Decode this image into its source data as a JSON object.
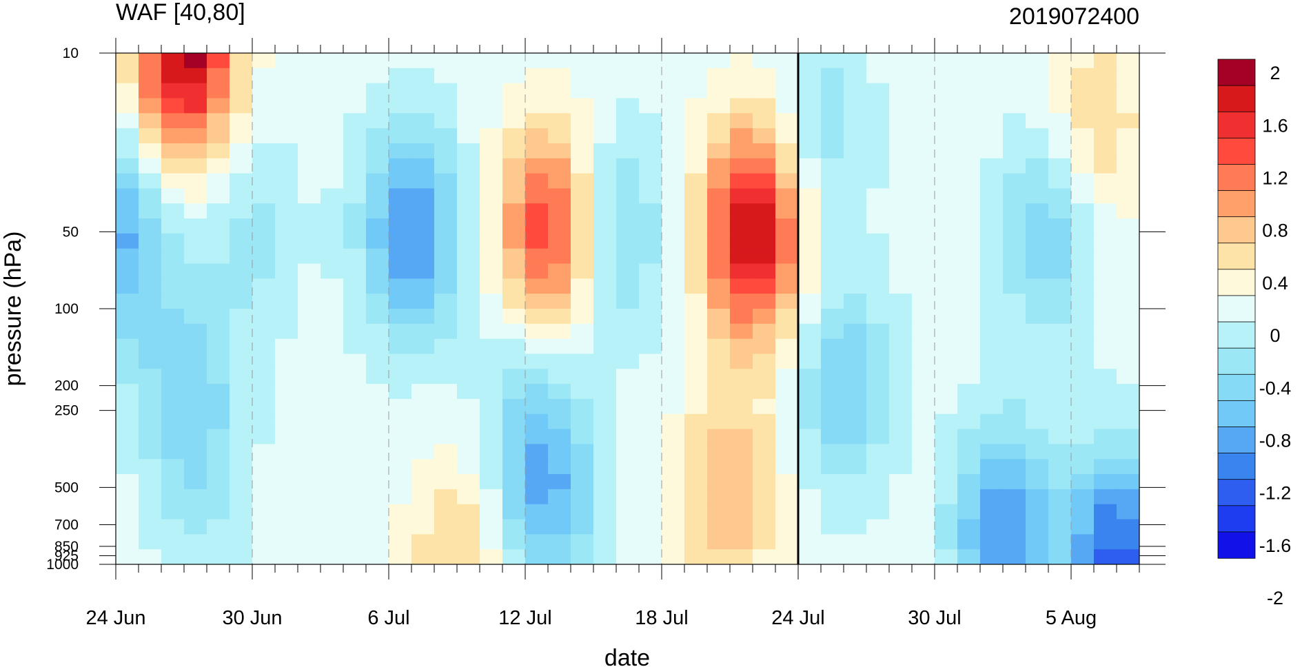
{
  "chart_data": {
    "type": "heatmap",
    "title": "WAF [40,80]",
    "subtitle": "2019072400",
    "xlabel": "date",
    "ylabel": "pressure (hPa)",
    "x_unit": "date",
    "y_scale": "log",
    "y_reversed": true,
    "xlim": [
      "2019-06-24",
      "2019-08-08"
    ],
    "ylim": [
      1000,
      10
    ],
    "x_tick_labels": [
      {
        "date": "2019-06-24",
        "label": "24 Jun"
      },
      {
        "date": "2019-06-30",
        "label": "30 Jun"
      },
      {
        "date": "2019-07-06",
        "label": "6 Jul"
      },
      {
        "date": "2019-07-12",
        "label": "12 Jul"
      },
      {
        "date": "2019-07-18",
        "label": "18 Jul"
      },
      {
        "date": "2019-07-24",
        "label": "24 Jul"
      },
      {
        "date": "2019-07-30",
        "label": "30 Jul"
      },
      {
        "date": "2019-08-05",
        "label": "5 Aug"
      }
    ],
    "y_ticks": [
      10,
      50,
      100,
      200,
      250,
      500,
      700,
      850,
      925,
      1000
    ],
    "y_tick_labels": [
      "10",
      "50",
      "100",
      "200",
      "250",
      "500",
      "700",
      "850",
      "925",
      "1000"
    ],
    "current_date_marker": "2019-07-24",
    "colorbar": {
      "labels": [
        "2",
        "1.6",
        "1.2",
        "0.8",
        "0.4",
        "0",
        "-0.4",
        "-0.8",
        "-1.2",
        "-1.6",
        "-2"
      ],
      "colors": [
        "#A50026",
        "#D7191C",
        "#F03030",
        "#FF4A3D",
        "#FF7B55",
        "#FFA06A",
        "#FDC98E",
        "#FDE3A8",
        "#FFF9DC",
        "#E6FCFA",
        "#B6F2F7",
        "#9CE7F6",
        "#86DAF5",
        "#70C9F7",
        "#56A8F5",
        "#3A84F0",
        "#2D5EF0",
        "#1E3CF0",
        "#1212E8"
      ]
    },
    "features": [
      {
        "date": "2019-06-27",
        "pressure": 10,
        "value": 2.1
      },
      {
        "date": "2019-06-24",
        "pressure": 50,
        "value": -1.1
      },
      {
        "date": "2019-06-30",
        "pressure": 50,
        "value": -0.4
      },
      {
        "date": "2019-07-07",
        "pressure": 50,
        "value": -1.3
      },
      {
        "date": "2019-07-13",
        "pressure": 50,
        "value": 1.5
      },
      {
        "date": "2019-07-16",
        "pressure": 50,
        "value": -0.7
      },
      {
        "date": "2019-07-22",
        "pressure": 50,
        "value": 2.0
      },
      {
        "date": "2019-07-25",
        "pressure": 20,
        "value": -0.5
      },
      {
        "date": "2019-08-04",
        "pressure": 50,
        "value": -0.8
      },
      {
        "date": "2019-08-06",
        "pressure": 20,
        "value": 0.6
      },
      {
        "date": "2019-06-27",
        "pressure": 200,
        "value": -0.7
      },
      {
        "date": "2019-07-12",
        "pressure": 210,
        "value": -0.4
      },
      {
        "date": "2019-07-26",
        "pressure": 200,
        "value": -0.8
      },
      {
        "date": "2019-07-13",
        "pressure": 520,
        "value": -1.0
      },
      {
        "date": "2019-07-21",
        "pressure": 520,
        "value": 0.8
      },
      {
        "date": "2019-06-28",
        "pressure": 520,
        "value": -0.3
      },
      {
        "date": "2019-08-02",
        "pressure": 750,
        "value": -1.3
      },
      {
        "date": "2019-08-07",
        "pressure": 950,
        "value": -1.6
      },
      {
        "date": "2019-07-09",
        "pressure": 980,
        "value": 0.6
      }
    ]
  }
}
